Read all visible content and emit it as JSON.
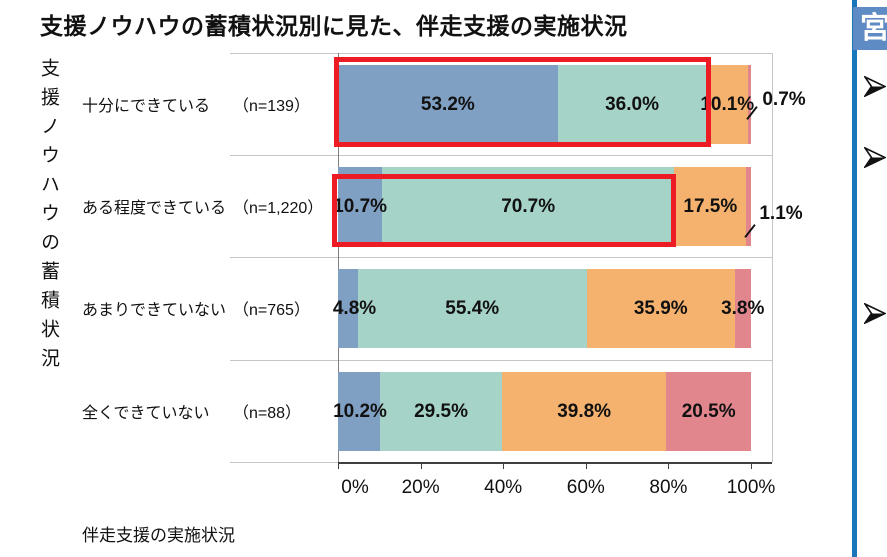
{
  "title": "支援ノウハウの蓄積状況別に見た、伴走支援の実施状況",
  "y_axis_title": "支援ノウハウの蓄積状況",
  "x_axis_title": "伴走支援の実施状況",
  "chart_data": {
    "type": "bar",
    "stacked": true,
    "orientation": "horizontal",
    "title": "支援ノウハウの蓄積状況別に見た、伴走支援の実施状況",
    "categories": [
      "十分にできている",
      "ある程度できている",
      "あまりできていない",
      "全くできていない"
    ],
    "sample_sizes": [
      "（n=139）",
      "（n=1,220）",
      "（n=765）",
      "（n=88）"
    ],
    "series": [
      {
        "name": "series-1",
        "color": "#7f9fc3",
        "values": [
          53.2,
          10.7,
          4.8,
          10.2
        ]
      },
      {
        "name": "series-2",
        "color": "#a6d3c8",
        "values": [
          36.0,
          70.7,
          55.4,
          29.5
        ]
      },
      {
        "name": "series-3",
        "color": "#f5b26e",
        "values": [
          10.1,
          17.5,
          35.9,
          39.8
        ]
      },
      {
        "name": "series-4",
        "color": "#e2868d",
        "values": [
          0.7,
          1.1,
          3.8,
          20.5
        ]
      }
    ],
    "x_ticks": [
      "0%",
      "20%",
      "40%",
      "60%",
      "80%",
      "100%"
    ],
    "xlim": [
      0,
      100
    ],
    "grid": false,
    "legend": "none",
    "data_label_format": "0.0%",
    "callout_labels": [
      {
        "row": 0,
        "series": 3,
        "text": "0.7%"
      },
      {
        "row": 1,
        "series": 3,
        "text": "1.1%"
      }
    ],
    "highlight_boxes": [
      {
        "row": 0,
        "segments": [
          0,
          1
        ],
        "color": "#ed1c24"
      },
      {
        "row": 1,
        "segments": [
          0,
          1
        ],
        "color": "#ed1c24"
      }
    ]
  },
  "sidebar": {
    "header_text": "宮",
    "header_bg": "#5e8bc4",
    "line_color": "#1777b8",
    "bullet_count": 3
  }
}
